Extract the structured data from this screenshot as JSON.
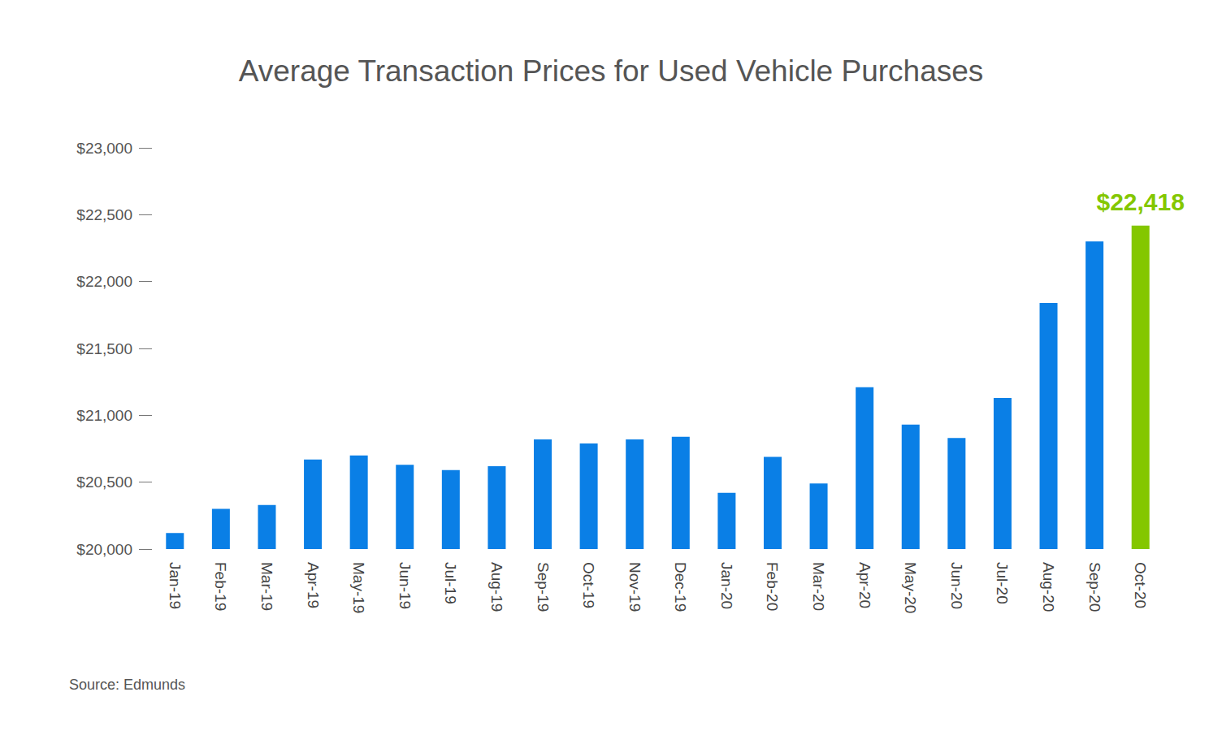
{
  "chart_data": {
    "type": "bar",
    "title": "Average Transaction Prices for Used Vehicle Purchases",
    "source": "Source: Edmunds",
    "categories": [
      "Jan-19",
      "Feb-19",
      "Mar-19",
      "Apr-19",
      "May-19",
      "Jun-19",
      "Jul-19",
      "Aug-19",
      "Sep-19",
      "Oct-19",
      "Nov-19",
      "Dec-19",
      "Jan-20",
      "Feb-20",
      "Mar-20",
      "Apr-20",
      "May-20",
      "Jun-20",
      "Jul-20",
      "Aug-20",
      "Sep-20",
      "Oct-20"
    ],
    "values": [
      20120,
      20300,
      20330,
      20670,
      20700,
      20630,
      20590,
      20620,
      20820,
      20790,
      20820,
      20840,
      20420,
      20690,
      20490,
      21210,
      20930,
      20830,
      21130,
      21840,
      22300,
      22418
    ],
    "value_labels": [
      null,
      null,
      null,
      null,
      null,
      null,
      null,
      null,
      null,
      null,
      null,
      null,
      null,
      null,
      null,
      null,
      null,
      null,
      null,
      null,
      null,
      "$22,418"
    ],
    "colors": [
      "#0a7fe6",
      "#0a7fe6",
      "#0a7fe6",
      "#0a7fe6",
      "#0a7fe6",
      "#0a7fe6",
      "#0a7fe6",
      "#0a7fe6",
      "#0a7fe6",
      "#0a7fe6",
      "#0a7fe6",
      "#0a7fe6",
      "#0a7fe6",
      "#0a7fe6",
      "#0a7fe6",
      "#0a7fe6",
      "#0a7fe6",
      "#0a7fe6",
      "#0a7fe6",
      "#0a7fe6",
      "#0a7fe6",
      "#84c700"
    ],
    "ylim": [
      20000,
      23000
    ],
    "yticks": [
      {
        "value": 20000,
        "label": "$20,000"
      },
      {
        "value": 20500,
        "label": "$20,500"
      },
      {
        "value": 21000,
        "label": "$21,000"
      },
      {
        "value": 21500,
        "label": "$21,500"
      },
      {
        "value": 22000,
        "label": "$22,000"
      },
      {
        "value": 22500,
        "label": "$22,500"
      },
      {
        "value": 23000,
        "label": "$23,000"
      }
    ],
    "grid": false
  }
}
